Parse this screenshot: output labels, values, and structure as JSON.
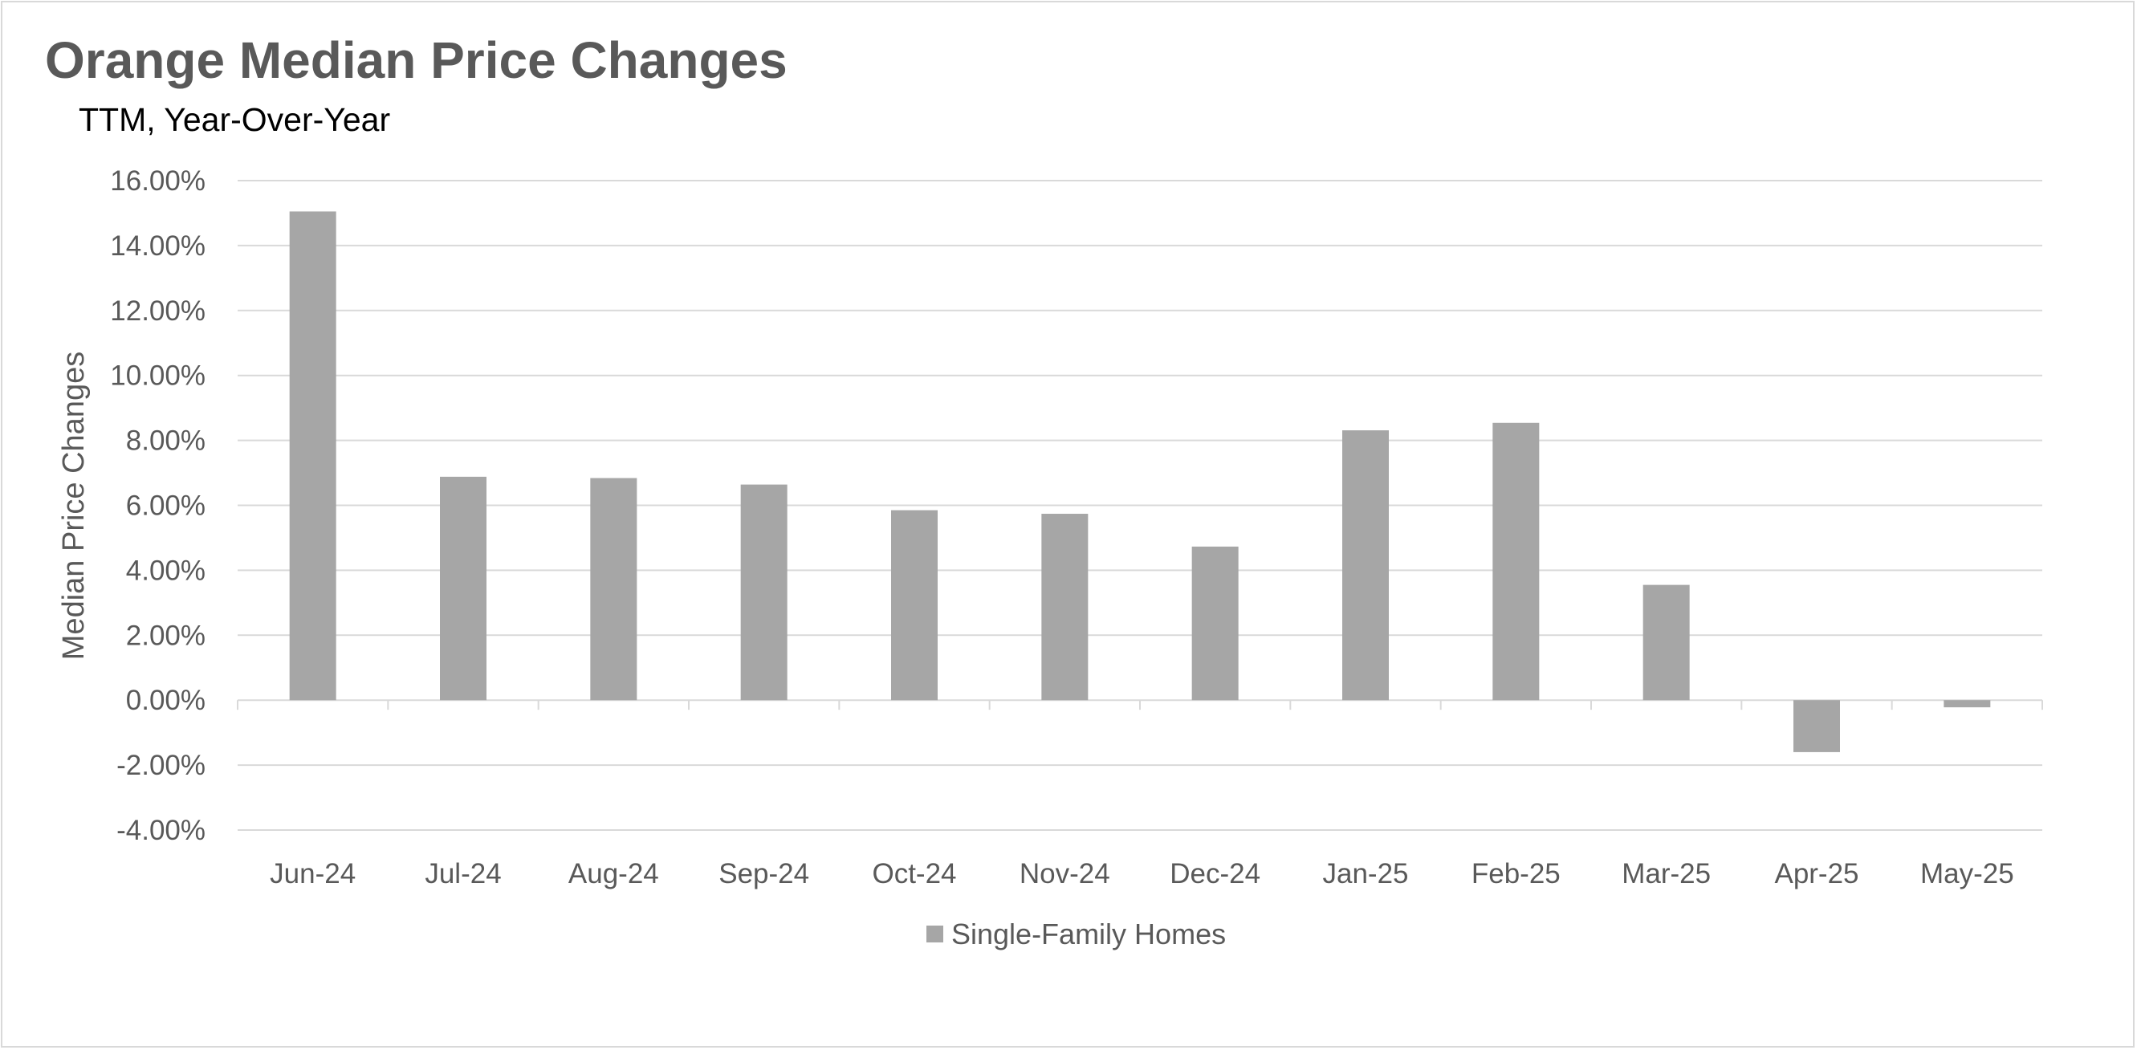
{
  "chart_data": {
    "type": "bar",
    "title": "Orange Median Price Changes",
    "subtitle": "TTM, Year-Over-Year",
    "ylabel": "Median Price Changes",
    "xlabel": "",
    "categories": [
      "Jun-24",
      "Jul-24",
      "Aug-24",
      "Sep-24",
      "Oct-24",
      "Nov-24",
      "Dec-24",
      "Jan-25",
      "Feb-25",
      "Mar-25",
      "Apr-25",
      "May-25"
    ],
    "series": [
      {
        "name": "Single-Family Homes",
        "color": "#a6a6a6",
        "values": [
          15.05,
          6.88,
          6.84,
          6.64,
          5.85,
          5.74,
          4.73,
          8.31,
          8.54,
          3.55,
          -1.6,
          -0.22
        ]
      }
    ],
    "ylim": [
      -4,
      16
    ],
    "yticks": [
      -4,
      -2,
      0,
      2,
      4,
      6,
      8,
      10,
      12,
      14,
      16
    ],
    "y_format": "percent_2dp",
    "grid": true,
    "legend_position": "bottom"
  }
}
